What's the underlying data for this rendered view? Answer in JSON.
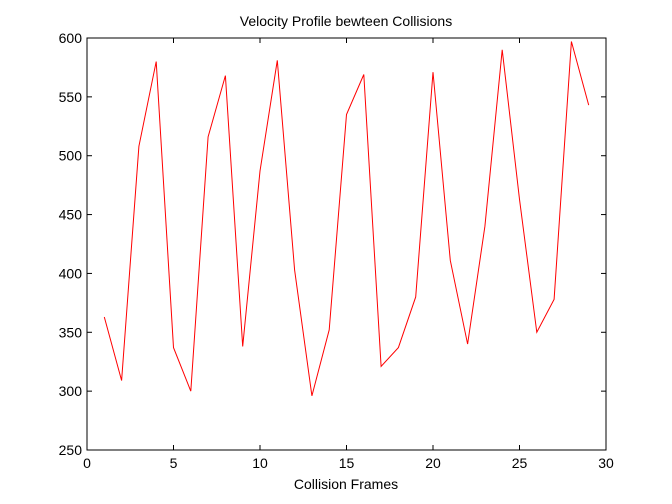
{
  "chart_data": {
    "type": "line",
    "title": "Velocity Profile bewteen Collisions",
    "xlabel": "Collision Frames",
    "ylabel": "",
    "xlim": [
      0,
      30
    ],
    "ylim": [
      250,
      600
    ],
    "xticks": [
      0,
      5,
      10,
      15,
      20,
      25,
      30
    ],
    "yticks": [
      250,
      300,
      350,
      400,
      450,
      500,
      550,
      600
    ],
    "grid": false,
    "series": [
      {
        "color": "#ff0000",
        "x": [
          1,
          2,
          3,
          4,
          5,
          6,
          7,
          8,
          9,
          10,
          11,
          12,
          13,
          14,
          15,
          16,
          17,
          18,
          19,
          20,
          21,
          22,
          23,
          24,
          25,
          26,
          27,
          28,
          29
        ],
        "values": [
          363,
          309,
          508,
          580,
          337,
          300,
          516,
          568,
          338,
          487,
          581,
          403,
          296,
          352,
          535,
          569,
          321,
          337,
          380,
          571,
          411,
          340,
          440,
          590,
          463,
          350,
          378,
          597,
          543
        ]
      }
    ]
  }
}
